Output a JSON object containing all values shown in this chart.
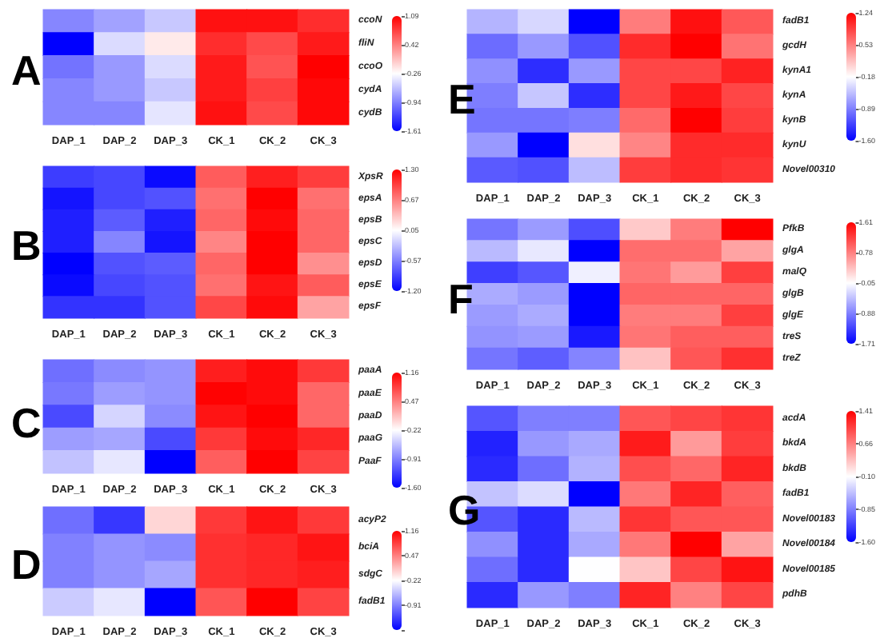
{
  "chart_data": [
    {
      "type": "heatmap",
      "title": "A",
      "categories": [
        "DAP_1",
        "DAP_2",
        "DAP_3",
        "CK_1",
        "CK_2",
        "CK_3"
      ],
      "y_categories": [
        "ccoN",
        "fliN",
        "ccoO",
        "cydA",
        "cydB"
      ],
      "cells": [
        [
          -0.9,
          -0.75,
          -0.55,
          1.0,
          1.0,
          0.85
        ],
        [
          -1.61,
          -0.45,
          -0.15,
          0.85,
          0.7,
          0.95
        ],
        [
          -1.0,
          -0.8,
          -0.45,
          0.95,
          0.65,
          1.09
        ],
        [
          -0.9,
          -0.8,
          -0.55,
          0.95,
          0.75,
          1.05
        ],
        [
          -0.9,
          -0.9,
          -0.4,
          1.0,
          0.7,
          1.05
        ]
      ],
      "clim": [
        -1.61,
        1.09
      ],
      "cticks": [
        -1.61,
        -0.94,
        -0.26,
        0.42,
        1.09
      ]
    },
    {
      "type": "heatmap",
      "title": "B",
      "categories": [
        "DAP_1",
        "DAP_2",
        "DAP_3",
        "CK_1",
        "CK_2",
        "CK_3"
      ],
      "y_categories": [
        "XpsR",
        "epsA",
        "epsB",
        "epsC",
        "epsD",
        "epsE",
        "epsF"
      ],
      "cells": [
        [
          -0.9,
          -0.85,
          -1.15,
          0.85,
          1.15,
          1.0
        ],
        [
          -1.1,
          -0.85,
          -0.8,
          0.75,
          1.3,
          0.75
        ],
        [
          -1.05,
          -0.75,
          -1.05,
          0.8,
          1.25,
          0.8
        ],
        [
          -1.05,
          -0.55,
          -1.1,
          0.65,
          1.3,
          0.8
        ],
        [
          -1.2,
          -0.8,
          -0.75,
          0.8,
          1.3,
          0.6
        ],
        [
          -1.15,
          -0.85,
          -0.8,
          0.75,
          1.2,
          0.85
        ],
        [
          -0.95,
          -0.95,
          -0.8,
          0.95,
          1.25,
          0.5
        ]
      ],
      "clim": [
        -1.2,
        1.3
      ],
      "cticks": [
        {
          "value": -1.2,
          "label": "-1.20"
        },
        -0.57,
        0.05,
        0.67,
        {
          "value": 1.3,
          "label": "1.30"
        }
      ]
    },
    {
      "type": "heatmap",
      "title": "C",
      "categories": [
        "DAP_1",
        "DAP_2",
        "DAP_3",
        "CK_1",
        "CK_2",
        "CK_3"
      ],
      "y_categories": [
        "paaA",
        "paaE",
        "paaD",
        "paaG",
        "PaaF"
      ],
      "cells": [
        [
          -1.0,
          -0.85,
          -0.8,
          1.0,
          1.1,
          0.85
        ],
        [
          -0.95,
          -0.75,
          -0.8,
          1.15,
          1.1,
          0.6
        ],
        [
          -1.2,
          -0.45,
          -0.85,
          1.05,
          1.16,
          0.6
        ],
        [
          -0.75,
          -0.7,
          -1.2,
          0.85,
          1.1,
          0.95
        ],
        [
          -0.55,
          -0.35,
          -1.6,
          0.65,
          1.16,
          0.8
        ]
      ],
      "clim": [
        -1.6,
        1.16
      ],
      "cticks": [
        {
          "value": -1.6,
          "label": "-1.60"
        },
        -0.91,
        -0.22,
        0.47,
        1.16
      ]
    },
    {
      "type": "heatmap",
      "title": "D",
      "categories": [
        "DAP_1",
        "DAP_2",
        "DAP_3",
        "CK_1",
        "CK_2",
        "CK_3"
      ],
      "y_categories": [
        "acyP2",
        "bciA",
        "sdgC",
        "fadB1"
      ],
      "cells": [
        [
          -1.0,
          -1.3,
          0.0,
          0.85,
          1.05,
          0.85
        ],
        [
          -0.9,
          -0.8,
          -0.85,
          0.9,
          0.95,
          1.05
        ],
        [
          -0.9,
          -0.8,
          -0.7,
          0.9,
          0.95,
          1.0
        ],
        [
          -0.5,
          -0.35,
          -1.6,
          0.7,
          1.16,
          0.8
        ]
      ],
      "clim": [
        -1.6,
        1.16
      ],
      "cticks": [
        {
          "value": -1.6,
          "label": null
        },
        -0.91,
        -0.22,
        0.47,
        1.16
      ]
    },
    {
      "type": "heatmap",
      "title": "E",
      "categories": [
        "DAP_1",
        "DAP_2",
        "DAP_3",
        "CK_1",
        "CK_2",
        "CK_3"
      ],
      "y_categories": [
        "fadB1",
        "gcdH",
        "kynA1",
        "kynA",
        "kynB",
        "kynU",
        "Novel00310"
      ],
      "cells": [
        [
          -0.6,
          -0.4,
          -1.6,
          0.55,
          1.15,
          0.75
        ],
        [
          -1.0,
          -0.75,
          -1.15,
          1.0,
          1.24,
          0.6
        ],
        [
          -0.8,
          -1.35,
          -0.75,
          0.85,
          0.85,
          1.05
        ],
        [
          -0.9,
          -0.5,
          -1.35,
          0.85,
          1.1,
          0.85
        ],
        [
          -0.95,
          -0.95,
          -0.9,
          0.65,
          1.24,
          0.9
        ],
        [
          -0.75,
          -1.6,
          0.0,
          0.5,
          1.0,
          1.0
        ],
        [
          -1.1,
          -1.15,
          -0.55,
          0.9,
          1.0,
          0.95
        ]
      ],
      "clim": [
        -1.6,
        1.24
      ],
      "cticks": [
        {
          "value": -1.6,
          "label": "-1.60"
        },
        -0.89,
        -0.18,
        0.53,
        1.24
      ]
    },
    {
      "type": "heatmap",
      "title": "F",
      "categories": [
        "DAP_1",
        "DAP_2",
        "DAP_3",
        "CK_1",
        "CK_2",
        "CK_3"
      ],
      "y_categories": [
        "PfkB",
        "glgA",
        "malQ",
        "glgB",
        "glgE",
        "treS",
        "treZ"
      ],
      "cells": [
        [
          -0.95,
          -0.7,
          -1.2,
          0.3,
          0.8,
          1.61
        ],
        [
          -0.5,
          -0.2,
          -1.71,
          0.9,
          0.9,
          0.55
        ],
        [
          -1.3,
          -1.15,
          -0.15,
          0.85,
          0.6,
          1.2
        ],
        [
          -0.6,
          -0.7,
          -1.71,
          0.95,
          0.95,
          0.95
        ],
        [
          -0.7,
          -0.6,
          -1.71,
          0.8,
          0.8,
          1.2
        ],
        [
          -0.75,
          -0.7,
          -1.55,
          0.85,
          1.0,
          1.0
        ],
        [
          -0.95,
          -1.1,
          -0.85,
          0.35,
          1.05,
          1.3
        ]
      ],
      "clim": [
        -1.71,
        1.61
      ],
      "cticks": [
        -1.71,
        -0.88,
        -0.05,
        0.78,
        1.61
      ]
    },
    {
      "type": "heatmap",
      "title": "G",
      "categories": [
        "DAP_1",
        "DAP_2",
        "DAP_3",
        "CK_1",
        "CK_2",
        "CK_3"
      ],
      "y_categories": [
        "acdA",
        "bkdA",
        "bkdB",
        "fadB1",
        "Novel00183",
        "Novel00184",
        "Novel00185",
        "pdhB"
      ],
      "cells": [
        [
          -1.1,
          -0.85,
          -0.85,
          0.9,
          1.0,
          1.1
        ],
        [
          -1.4,
          -0.7,
          -0.6,
          1.25,
          0.5,
          1.05
        ],
        [
          -1.35,
          -0.95,
          -0.55,
          0.95,
          0.8,
          1.2
        ],
        [
          -0.45,
          -0.3,
          -1.6,
          0.7,
          1.2,
          0.85
        ],
        [
          -1.1,
          -1.35,
          -0.5,
          1.1,
          0.9,
          0.9
        ],
        [
          -0.75,
          -1.35,
          -0.6,
          0.7,
          1.41,
          0.45
        ],
        [
          -0.95,
          -1.35,
          -0.1,
          0.25,
          1.0,
          1.3
        ],
        [
          -1.35,
          -0.7,
          -0.85,
          1.2,
          0.65,
          1.0
        ]
      ],
      "clim": [
        -1.6,
        1.41
      ],
      "cticks": [
        {
          "value": -1.6,
          "label": "-1.60"
        },
        -0.85,
        {
          "value": -0.1,
          "label": "-0.10"
        },
        0.66,
        1.41
      ]
    }
  ]
}
